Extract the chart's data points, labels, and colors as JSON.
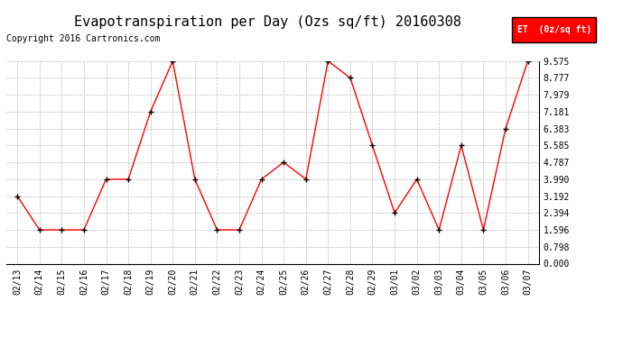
{
  "title": "Evapotranspiration per Day (Ozs sq/ft) 20160308",
  "copyright": "Copyright 2016 Cartronics.com",
  "legend_label": "ET  (0z/sq ft)",
  "dates": [
    "02/13",
    "02/14",
    "02/15",
    "02/16",
    "02/17",
    "02/18",
    "02/19",
    "02/20",
    "02/21",
    "02/22",
    "02/23",
    "02/24",
    "02/25",
    "02/26",
    "02/27",
    "02/28",
    "02/29",
    "03/01",
    "03/02",
    "03/03",
    "03/04",
    "03/05",
    "03/06",
    "03/07"
  ],
  "values": [
    3.192,
    1.596,
    1.596,
    1.596,
    3.99,
    3.99,
    7.181,
    9.575,
    3.99,
    1.596,
    1.596,
    3.99,
    4.787,
    3.99,
    9.575,
    8.777,
    5.585,
    2.394,
    3.99,
    1.596,
    5.585,
    1.596,
    6.383,
    9.575
  ],
  "ylim": [
    0,
    9.575
  ],
  "yticks": [
    0.0,
    0.798,
    1.596,
    2.394,
    3.192,
    3.99,
    4.787,
    5.585,
    6.383,
    7.181,
    7.979,
    8.777,
    9.575
  ],
  "line_color": "red",
  "marker_color": "black",
  "background_color": "white",
  "grid_color": "#bbbbbb",
  "title_fontsize": 11,
  "copyright_fontsize": 7,
  "tick_fontsize": 7,
  "legend_bg": "red",
  "legend_text_color": "white"
}
